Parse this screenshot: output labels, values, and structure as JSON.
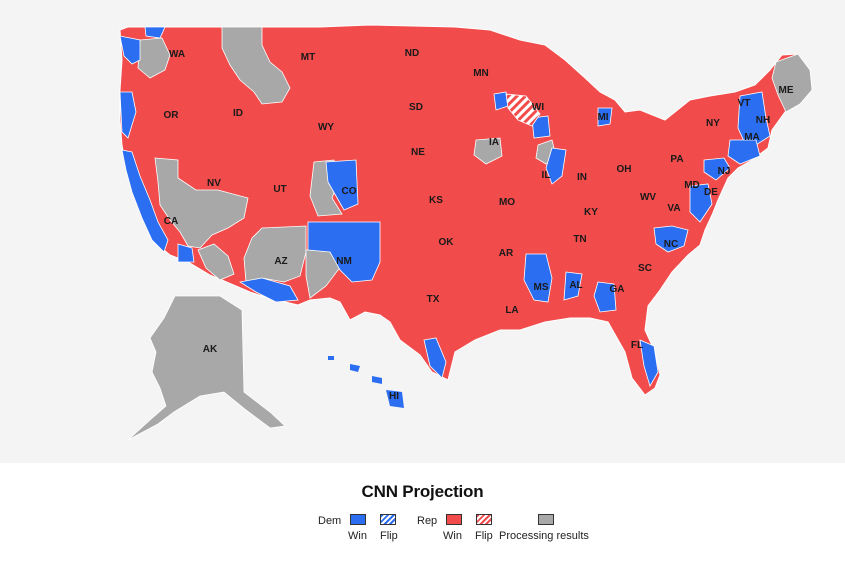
{
  "colors": {
    "dem": "#2b6ef2",
    "rep": "#f24b4b",
    "processing": "#a8a8a8",
    "background": "#f4f4f4",
    "border": "#ffffff"
  },
  "map": {
    "state_labels": [
      {
        "code": "WA"
      },
      {
        "code": "OR"
      },
      {
        "code": "CA"
      },
      {
        "code": "ID"
      },
      {
        "code": "NV"
      },
      {
        "code": "MT"
      },
      {
        "code": "WY"
      },
      {
        "code": "UT"
      },
      {
        "code": "AZ"
      },
      {
        "code": "CO"
      },
      {
        "code": "NM"
      },
      {
        "code": "ND"
      },
      {
        "code": "SD"
      },
      {
        "code": "NE"
      },
      {
        "code": "KS"
      },
      {
        "code": "OK"
      },
      {
        "code": "TX"
      },
      {
        "code": "MN"
      },
      {
        "code": "IA"
      },
      {
        "code": "MO"
      },
      {
        "code": "AR"
      },
      {
        "code": "LA"
      },
      {
        "code": "WI"
      },
      {
        "code": "IL"
      },
      {
        "code": "MS"
      },
      {
        "code": "MI"
      },
      {
        "code": "IN"
      },
      {
        "code": "KY"
      },
      {
        "code": "TN"
      },
      {
        "code": "AL"
      },
      {
        "code": "OH"
      },
      {
        "code": "GA"
      },
      {
        "code": "FL"
      },
      {
        "code": "SC"
      },
      {
        "code": "NC"
      },
      {
        "code": "VA"
      },
      {
        "code": "WV"
      },
      {
        "code": "PA"
      },
      {
        "code": "NY"
      },
      {
        "code": "MD"
      },
      {
        "code": "DE"
      },
      {
        "code": "NJ"
      },
      {
        "code": "VT"
      },
      {
        "code": "NH"
      },
      {
        "code": "MA"
      },
      {
        "code": "ME"
      },
      {
        "code": "AK"
      },
      {
        "code": "HI"
      }
    ]
  },
  "legend": {
    "title": "CNN Projection",
    "dem_label": "Dem",
    "rep_label": "Rep",
    "win_label": "Win",
    "flip_label": "Flip",
    "processing_label": "Processing results"
  }
}
